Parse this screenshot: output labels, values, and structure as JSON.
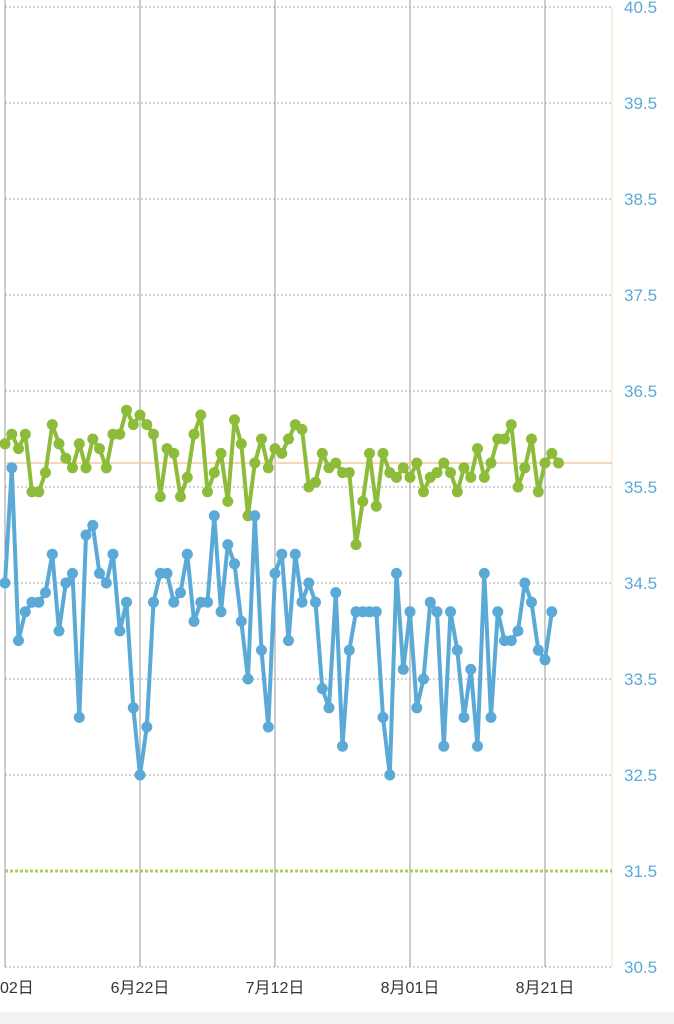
{
  "chart_data": {
    "type": "line",
    "x_ticks": [
      "02日",
      "6月22日",
      "7月12日",
      "8月01日",
      "8月21日"
    ],
    "y_ticks": [
      "40.5",
      "39.5",
      "38.5",
      "37.5",
      "36.5",
      "35.5",
      "34.5",
      "33.5",
      "32.5",
      "31.5",
      "30.5"
    ],
    "ylim": [
      30.5,
      40.5
    ],
    "grid": true,
    "reference_line": 35.75,
    "baseline_line": 31.5,
    "colors": {
      "upper": "#8dbb3a",
      "lower": "#5aa9d6",
      "reference": "#f5c9a0",
      "baseline": "#a8d060",
      "grid": "#aaaaaa",
      "tick_y": "#5aa9d6"
    },
    "series": [
      {
        "values": [
          35.95,
          36.05,
          35.9,
          36.05,
          35.45,
          35.45,
          35.65,
          36.15,
          35.95,
          35.8,
          35.7,
          35.95,
          35.7,
          36.0,
          35.9,
          35.7,
          36.05,
          36.05,
          36.3,
          36.15,
          36.25,
          36.15,
          36.05,
          35.4,
          35.9,
          35.85,
          35.4,
          35.6,
          36.05,
          36.25,
          35.45,
          35.65,
          35.85,
          35.35,
          36.2,
          35.95,
          35.2,
          35.75,
          36.0,
          35.7,
          35.9,
          35.85,
          36.0,
          36.15,
          36.1,
          35.5,
          35.55,
          35.85,
          35.7,
          35.75,
          35.65,
          35.65,
          34.9,
          35.35,
          35.85,
          35.3,
          35.85,
          35.65,
          35.6,
          35.7,
          35.6,
          35.75,
          35.45,
          35.6,
          35.65,
          35.75,
          35.65,
          35.45,
          35.7,
          35.6,
          35.9,
          35.6,
          35.75,
          36.0,
          36.0,
          36.15,
          35.5,
          35.7,
          36.0,
          35.45,
          35.75,
          35.85,
          35.75
        ]
      },
      {
        "values": [
          34.5,
          35.7,
          33.9,
          34.2,
          34.3,
          34.3,
          34.4,
          34.8,
          34.0,
          34.5,
          34.6,
          33.1,
          35.0,
          35.1,
          34.6,
          34.5,
          34.8,
          34.0,
          34.3,
          33.2,
          32.5,
          33.0,
          34.3,
          34.6,
          34.6,
          34.3,
          34.4,
          34.8,
          34.1,
          34.3,
          34.3,
          35.2,
          34.2,
          34.9,
          34.7,
          34.1,
          33.5,
          35.2,
          33.8,
          33.0,
          34.6,
          34.8,
          33.9,
          34.8,
          34.3,
          34.5,
          34.3,
          33.4,
          33.2,
          34.4,
          32.8,
          33.8,
          34.2,
          34.2,
          34.2,
          34.2,
          33.1,
          32.5,
          34.6,
          33.6,
          34.2,
          33.2,
          33.5,
          34.3,
          34.2,
          32.8,
          34.2,
          33.8,
          33.1,
          33.6,
          32.8,
          34.6,
          33.1,
          34.2,
          33.9,
          33.9,
          34.0,
          34.5,
          34.3,
          33.8,
          33.7,
          34.2
        ]
      }
    ]
  }
}
